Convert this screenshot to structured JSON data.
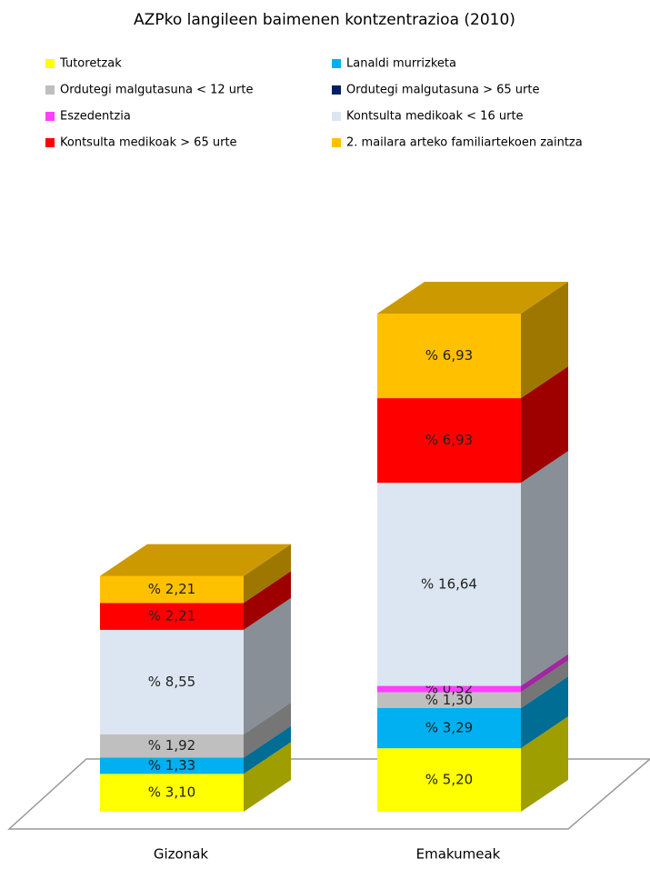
{
  "chart_data": {
    "type": "bar",
    "stacked": true,
    "title": "AZPko langileen baimenen kontzentrazioa (2010)",
    "categories": [
      "Gizonak",
      "Emakumeak"
    ],
    "series": [
      {
        "name": "Tutoretzak",
        "color": "#ffff00",
        "values": [
          3.1,
          5.2
        ],
        "value_labels": [
          "% 3,10",
          "% 5,20"
        ]
      },
      {
        "name": "Lanaldi murrizketa",
        "color": "#00b0f0",
        "values": [
          1.33,
          3.29
        ],
        "value_labels": [
          "% 1,33",
          "% 3,29"
        ]
      },
      {
        "name": "Ordutegi malgutasuna < 12 urte",
        "color": "#bfbfbf",
        "values": [
          1.92,
          1.3
        ],
        "value_labels": [
          "% 1,92",
          "% 1,30"
        ]
      },
      {
        "name": "Ordutegi malgutasuna > 65 urte",
        "color": "#002060",
        "values": [
          0,
          0
        ],
        "value_labels": [
          null,
          null
        ]
      },
      {
        "name": "Eszedentzia",
        "color": "#ff40ff",
        "values": [
          0,
          0.52
        ],
        "value_labels": [
          null,
          "% 0,52"
        ]
      },
      {
        "name": "Kontsulta medikoak < 16 urte",
        "color": "#dce6f2",
        "values": [
          8.55,
          16.64
        ],
        "value_labels": [
          "% 8,55",
          "% 16,64"
        ]
      },
      {
        "name": "Kontsulta medikoak > 65 urte",
        "color": "#ff0000",
        "values": [
          2.21,
          6.93
        ],
        "value_labels": [
          "% 2,21",
          "% 6,93"
        ]
      },
      {
        "name": "2. mailara arteko familiartekoen zaintza",
        "color": "#ffc000",
        "values": [
          2.21,
          6.93
        ],
        "value_labels": [
          "% 2,21",
          "% 6,93"
        ]
      }
    ]
  }
}
